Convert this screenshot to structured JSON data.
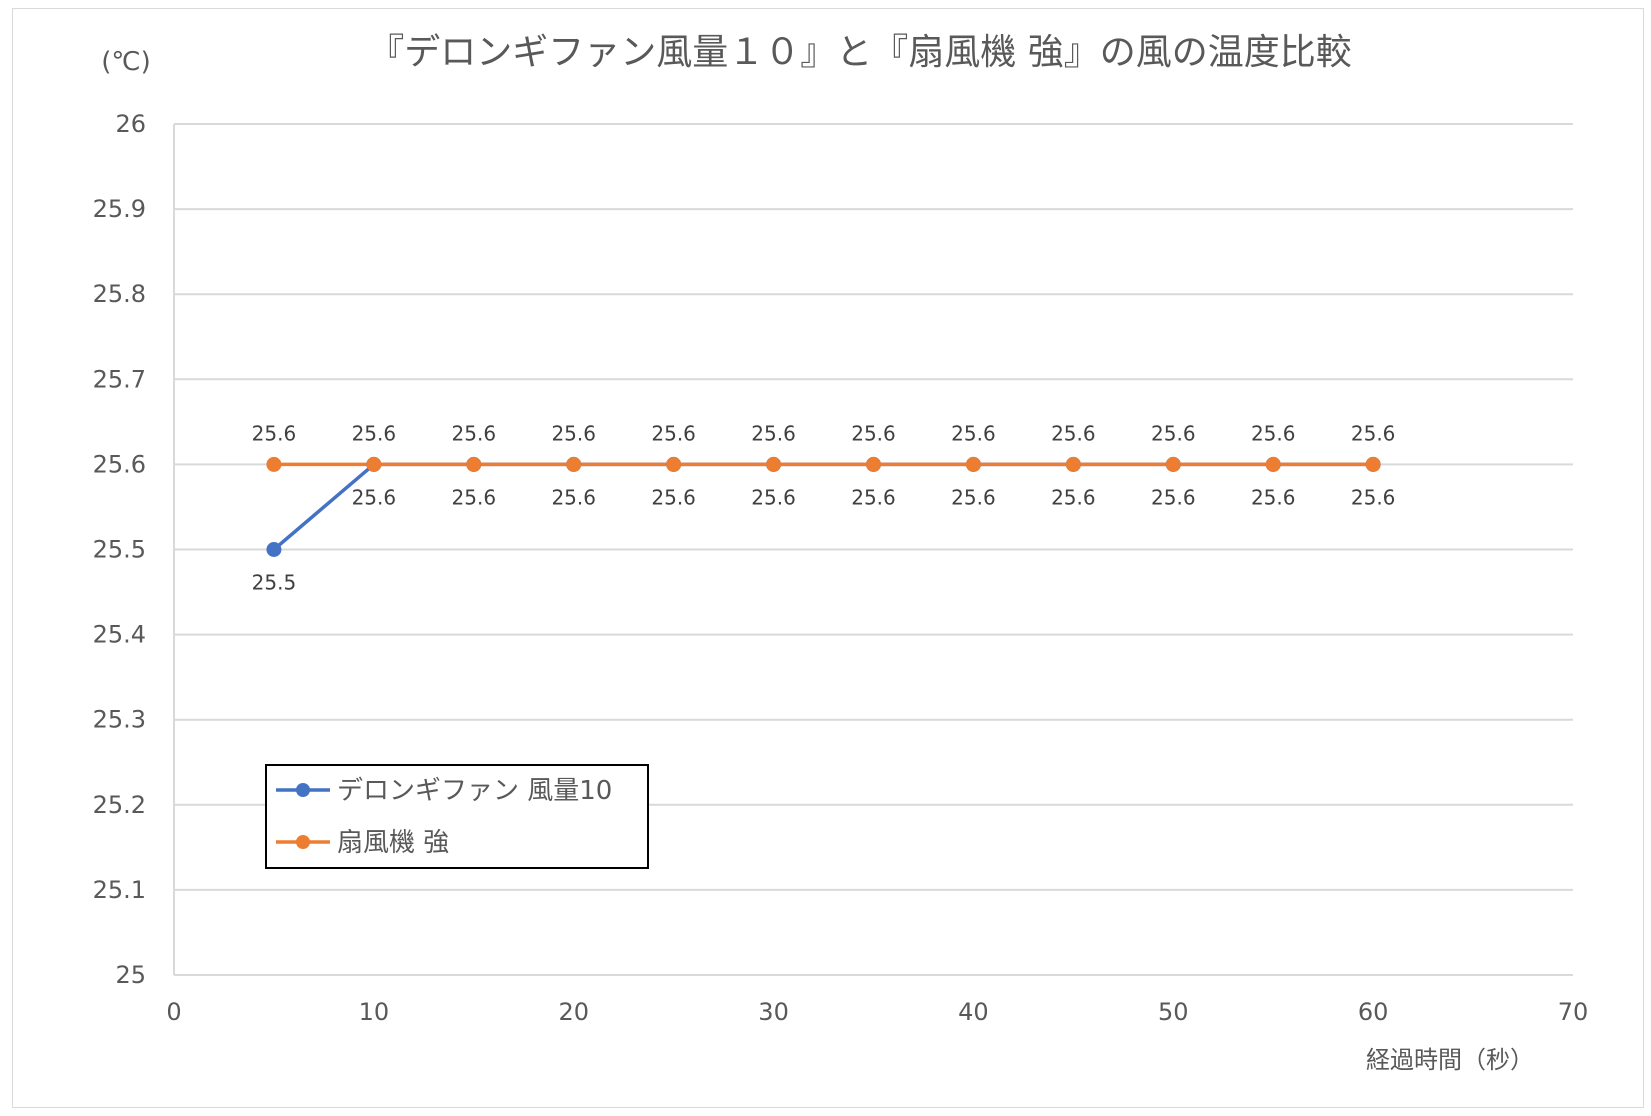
{
  "chart_data": {
    "type": "line",
    "title": "『デロンギファン風量１０』と『扇風機 強』の風の温度比較",
    "ylabel": "(℃)",
    "xlabel": "経過時間（秒）",
    "xlim": [
      0,
      70
    ],
    "ylim": [
      25,
      26
    ],
    "x_ticks": [
      "0",
      "10",
      "20",
      "30",
      "40",
      "50",
      "60",
      "70"
    ],
    "y_ticks": [
      "25",
      "25.1",
      "25.2",
      "25.3",
      "25.4",
      "25.5",
      "25.6",
      "25.7",
      "25.8",
      "25.9",
      "26"
    ],
    "grid": true,
    "legend_position": "bottom-left",
    "series": [
      {
        "name": "デロンギファン 風量10",
        "color": "#4472c4",
        "x": [
          5,
          10,
          15,
          20,
          25,
          30,
          35,
          40,
          45,
          50,
          55,
          60
        ],
        "values": [
          25.5,
          25.6,
          25.6,
          25.6,
          25.6,
          25.6,
          25.6,
          25.6,
          25.6,
          25.6,
          25.6,
          25.6
        ],
        "labels": [
          "25.5",
          "25.6",
          "25.6",
          "25.6",
          "25.6",
          "25.6",
          "25.6",
          "25.6",
          "25.6",
          "25.6",
          "25.6",
          "25.6"
        ],
        "label_position": "below"
      },
      {
        "name": "扇風機 強",
        "color": "#ed7d31",
        "x": [
          5,
          10,
          15,
          20,
          25,
          30,
          35,
          40,
          45,
          50,
          55,
          60
        ],
        "values": [
          25.6,
          25.6,
          25.6,
          25.6,
          25.6,
          25.6,
          25.6,
          25.6,
          25.6,
          25.6,
          25.6,
          25.6
        ],
        "labels": [
          "25.6",
          "25.6",
          "25.6",
          "25.6",
          "25.6",
          "25.6",
          "25.6",
          "25.6",
          "25.6",
          "25.6",
          "25.6",
          "25.6"
        ],
        "label_position": "above"
      }
    ]
  }
}
